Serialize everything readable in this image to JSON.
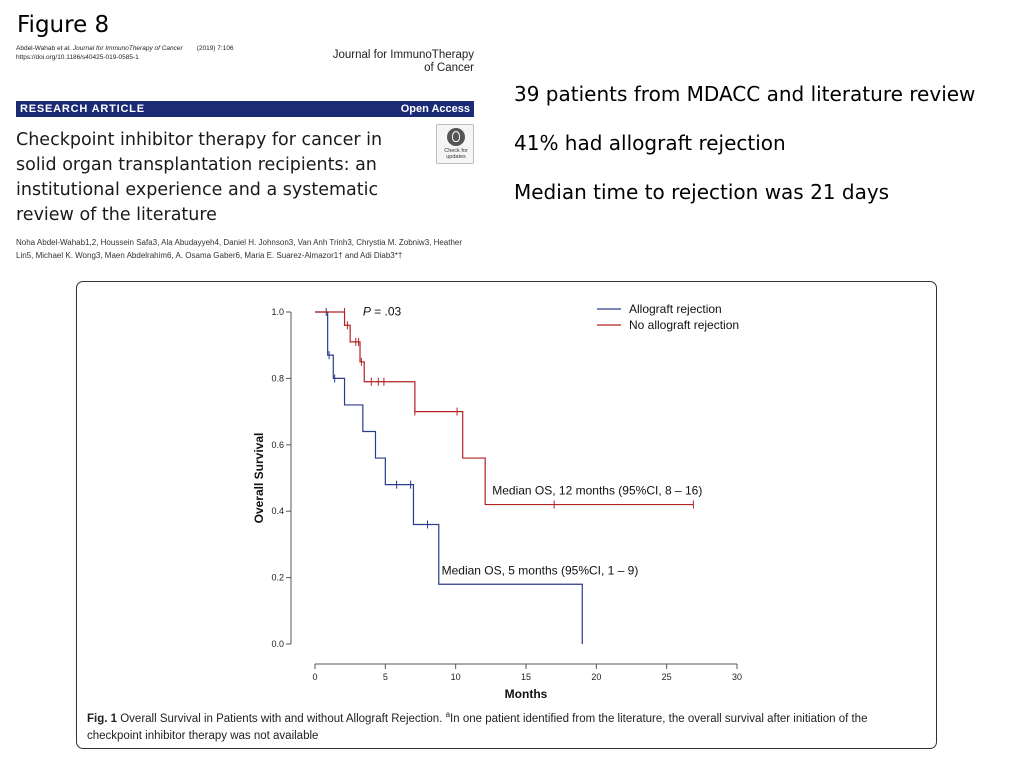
{
  "slide": {
    "title": "Figure 8"
  },
  "paper": {
    "citation_line1_authors": "Abdel-Wahab ",
    "citation_line1_etal": "et al. Journal for ImmunoTherapy of Cancer",
    "citation_line1_year": "(2019) 7:106",
    "citation_line2": "https://doi.org/10.1186/s40425-019-0585-1",
    "journal_line1": "Journal for ImmunoTherapy",
    "journal_line2": "of Cancer",
    "banner_left": "RESEARCH ARTICLE",
    "banner_right": "Open Access",
    "title": "Checkpoint inhibitor therapy for cancer in solid organ transplantation recipients: an institutional experience and a systematic review of the literature",
    "badge_line1": "Check for",
    "badge_line2": "updates",
    "authors": "Noha Abdel-Wahab1,2, Houssein Safa3, Ala Abudayyeh4, Daniel H. Johnson3, Van Anh Trinh3, Chrystia M. Zobniw3, Heather Lin5, Michael K. Wong3, Maen Abdelrahim6, A. Osama Gaber6, Maria E. Suarez-Almazor1† and Adi Diab3*†"
  },
  "bullets": [
    "39 patients from MDACC and literature review",
    "41% had allograft rejection",
    "Median time to rejection was 21 days"
  ],
  "figure": {
    "caption_label": "Fig. 1",
    "caption_text": " Overall Survival in Patients with and without Allograft Rejection. ",
    "caption_sup": "a",
    "caption_rest": "In one patient identified from the literature, the overall survival after initiation of the checkpoint inhibitor therapy was not available"
  },
  "chart_data": {
    "type": "line",
    "subtype": "kaplan-meier",
    "xlabel": "Months",
    "ylabel": "Overall Survival",
    "xlim": [
      0,
      30
    ],
    "ylim": [
      0,
      1
    ],
    "x_ticks": [
      0,
      5,
      10,
      15,
      20,
      25,
      30
    ],
    "y_ticks": [
      0.0,
      0.2,
      0.4,
      0.6,
      0.8,
      1.0
    ],
    "x_tick_labels": [
      "0",
      "5",
      "10",
      "15",
      "20",
      "25",
      "30"
    ],
    "y_tick_labels": [
      "0.0",
      "0.2",
      "0.4",
      "0.6",
      "0.8",
      "1.0"
    ],
    "grid": false,
    "legend_position": "top-right",
    "annotations": [
      {
        "label": "P = .03",
        "x": 3.4,
        "y": 0.99
      },
      {
        "label": "Median OS, 12 months (95%CI, 8 – 16)",
        "x": 12.6,
        "y": 0.45
      },
      {
        "label": "Median OS, 5 months (95%CI, 1 – 9)",
        "x": 9.0,
        "y": 0.21
      }
    ],
    "series": [
      {
        "name": "Allograft rejection",
        "color": "#2a3a8c",
        "steps": [
          [
            0,
            1.0
          ],
          [
            0.9,
            0.87
          ],
          [
            1.3,
            0.8
          ],
          [
            2.1,
            0.72
          ],
          [
            3.4,
            0.64
          ],
          [
            4.3,
            0.56
          ],
          [
            5.0,
            0.48
          ],
          [
            7.0,
            0.36
          ],
          [
            8.8,
            0.18
          ],
          [
            19.0,
            0.0
          ]
        ],
        "end_x": 19.0,
        "censored": [
          [
            0.8,
            1.0
          ],
          [
            1.0,
            0.87
          ],
          [
            1.4,
            0.8
          ],
          [
            5.8,
            0.48
          ],
          [
            6.8,
            0.48
          ],
          [
            8.0,
            0.36
          ]
        ]
      },
      {
        "name": "No allograft rejection",
        "color": "#b22222",
        "steps": [
          [
            0,
            1.0
          ],
          [
            2.1,
            0.96
          ],
          [
            2.5,
            0.91
          ],
          [
            3.2,
            0.85
          ],
          [
            3.5,
            0.79
          ],
          [
            7.1,
            0.7
          ],
          [
            10.5,
            0.56
          ],
          [
            12.1,
            0.42
          ]
        ],
        "end_x": 26.9,
        "censored": [
          [
            2.1,
            1.0
          ],
          [
            2.3,
            0.96
          ],
          [
            2.9,
            0.91
          ],
          [
            3.1,
            0.91
          ],
          [
            3.3,
            0.85
          ],
          [
            4.0,
            0.79
          ],
          [
            4.5,
            0.79
          ],
          [
            4.9,
            0.79
          ],
          [
            7.1,
            0.7
          ],
          [
            10.1,
            0.7
          ],
          [
            17.0,
            0.42
          ],
          [
            26.9,
            0.42
          ]
        ]
      }
    ]
  }
}
